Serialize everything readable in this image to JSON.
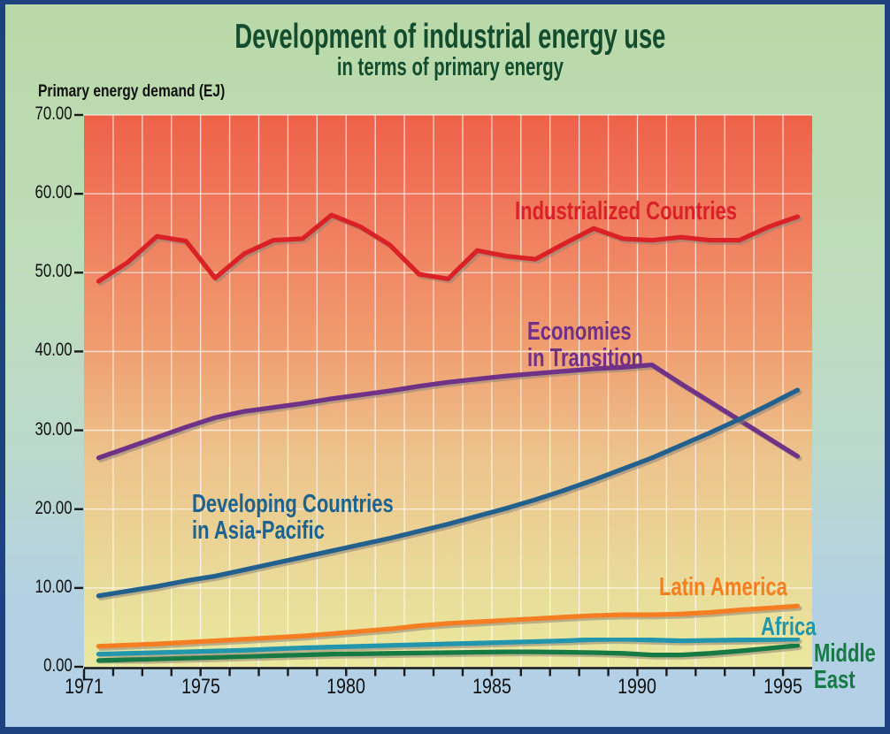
{
  "header": {
    "title": "Development of industrial energy use",
    "subtitle": "in terms of primary energy"
  },
  "chart_data": {
    "type": "line",
    "title": "Development of industrial energy use",
    "subtitle": "in terms of primary energy",
    "ylabel": "Primary energy demand (EJ)",
    "xlabel": "",
    "ylim": [
      0,
      70
    ],
    "x_range_years": [
      1971,
      1996
    ],
    "grid": "on",
    "legend_position": "inline-labels",
    "x": [
      1971,
      1972,
      1973,
      1974,
      1975,
      1976,
      1977,
      1978,
      1979,
      1980,
      1981,
      1982,
      1983,
      1984,
      1985,
      1986,
      1987,
      1988,
      1989,
      1990,
      1991,
      1992,
      1993,
      1994,
      1995
    ],
    "x_ticks": [
      {
        "value": 1971,
        "label": "1971"
      },
      {
        "value": 1975,
        "label": "1975"
      },
      {
        "value": 1980,
        "label": "1980"
      },
      {
        "value": 1985,
        "label": "1985"
      },
      {
        "value": 1990,
        "label": "1990"
      },
      {
        "value": 1995,
        "label": "1995"
      }
    ],
    "y_ticks": [
      {
        "value": 70,
        "label": "70.00"
      },
      {
        "value": 60,
        "label": "60.00"
      },
      {
        "value": 50,
        "label": "50.00"
      },
      {
        "value": 40,
        "label": "40.00"
      },
      {
        "value": 30,
        "label": "30.00"
      },
      {
        "value": 20,
        "label": "20.00"
      },
      {
        "value": 10,
        "label": "10.00"
      },
      {
        "value": 0,
        "label": "0.00"
      }
    ],
    "series": [
      {
        "name": "Industrialized Countries",
        "color": "#da2128",
        "values": [
          48.9,
          51.3,
          54.6,
          54.0,
          49.3,
          52.4,
          54.1,
          54.3,
          57.3,
          55.8,
          53.5,
          49.8,
          49.2,
          52.8,
          52.1,
          51.7,
          53.7,
          55.6,
          54.3,
          54.1,
          54.5,
          54.1,
          54.1,
          55.8,
          57.1
        ]
      },
      {
        "name": "Economies in Transition",
        "color": "#6f3087",
        "values": [
          26.5,
          27.8,
          29.1,
          30.4,
          31.6,
          32.4,
          32.9,
          33.4,
          34.0,
          34.5,
          35.0,
          35.6,
          36.1,
          36.5,
          36.9,
          37.2,
          37.5,
          37.8,
          38.0,
          38.3,
          35.9,
          33.6,
          31.3,
          29.0,
          26.7
        ]
      },
      {
        "name": "Developing Countries in Asia-Pacific",
        "color": "#21618e",
        "values": [
          9.0,
          9.6,
          10.2,
          10.9,
          11.5,
          12.3,
          13.1,
          13.9,
          14.7,
          15.5,
          16.3,
          17.2,
          18.1,
          19.1,
          20.1,
          21.2,
          22.4,
          23.7,
          25.1,
          26.5,
          28.1,
          29.7,
          31.4,
          33.2,
          35.1
        ]
      },
      {
        "name": "Latin America",
        "color": "#f57e20",
        "values": [
          2.6,
          2.75,
          2.9,
          3.1,
          3.3,
          3.5,
          3.7,
          3.9,
          4.2,
          4.5,
          4.8,
          5.2,
          5.5,
          5.7,
          5.9,
          6.1,
          6.3,
          6.5,
          6.6,
          6.6,
          6.7,
          6.9,
          7.2,
          7.45,
          7.7
        ]
      },
      {
        "name": "Africa",
        "color": "#2196ad",
        "values": [
          1.6,
          1.7,
          1.8,
          1.9,
          2.0,
          2.1,
          2.25,
          2.4,
          2.5,
          2.6,
          2.7,
          2.8,
          2.9,
          3.0,
          3.1,
          3.2,
          3.3,
          3.45,
          3.5,
          3.4,
          3.3,
          3.35,
          3.4,
          3.45,
          3.5
        ]
      },
      {
        "name": "Middle East",
        "color": "#177a45",
        "values": [
          0.8,
          0.9,
          1.0,
          1.1,
          1.2,
          1.3,
          1.4,
          1.5,
          1.6,
          1.65,
          1.7,
          1.75,
          1.8,
          1.85,
          1.9,
          1.9,
          1.85,
          1.8,
          1.7,
          1.5,
          1.5,
          1.7,
          2.0,
          2.35,
          2.7
        ]
      }
    ]
  },
  "annotations": {
    "labels": [
      {
        "text": "Industrialized Countries",
        "color": "#da2128"
      },
      {
        "text": "Economies\nin Transition",
        "color": "#6f3087"
      },
      {
        "text": "Developing Countries\nin Asia-Pacific",
        "color": "#1d6390"
      },
      {
        "text": "Latin America",
        "color": "#f57e20"
      },
      {
        "text": "Africa",
        "color": "#2196ad"
      },
      {
        "text": "Middle\nEast",
        "color": "#177a45"
      }
    ]
  },
  "style": {
    "title_color": "#134d2d",
    "axis_color": "#1a1a1a",
    "grid_color": "rgba(255,255,255,0.72)",
    "line_shadow_color": "#8c8478",
    "plot_gradient": [
      [
        "0%",
        "#ee6149"
      ],
      [
        "15%",
        "#f0765a"
      ],
      [
        "40%",
        "#f09a6e"
      ],
      [
        "62%",
        "#edc38c"
      ],
      [
        "86%",
        "#e9dc9a"
      ],
      [
        "100%",
        "#eae89e"
      ]
    ],
    "outer_border_color": "#1e4180"
  }
}
